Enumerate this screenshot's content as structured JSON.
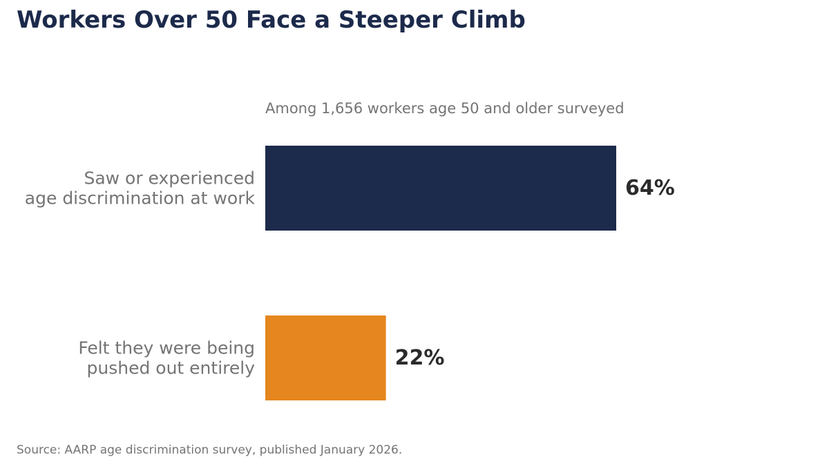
{
  "title": "Workers Over 50 Face a Steeper Climb",
  "subtitle": "Among 1,656 workers age 50 and older surveyed",
  "source": "Source: AARP age discrimination survey, published January 2026.",
  "colors": {
    "title": "#1c2a4b",
    "text": "#747474",
    "value": "#2b2b2b",
    "bar_primary": "#1c2a4b",
    "bar_secondary": "#e5861e"
  },
  "chart_data": {
    "type": "bar",
    "orientation": "horizontal",
    "categories": [
      [
        "Saw or experienced",
        "age discrimination at work"
      ],
      [
        "Felt they were being",
        "pushed out entirely"
      ]
    ],
    "values": [
      64,
      22
    ],
    "value_labels": [
      "64%",
      "22%"
    ],
    "bar_colors": [
      "#1c2a4b",
      "#e5861e"
    ],
    "unit": "%",
    "xlim": [
      0,
      100
    ],
    "grid": false,
    "legend": "none",
    "title": "Workers Over 50 Face a Steeper Climb",
    "subtitle": "Among 1,656 workers age 50 and older surveyed",
    "xlabel": "",
    "ylabel": ""
  }
}
